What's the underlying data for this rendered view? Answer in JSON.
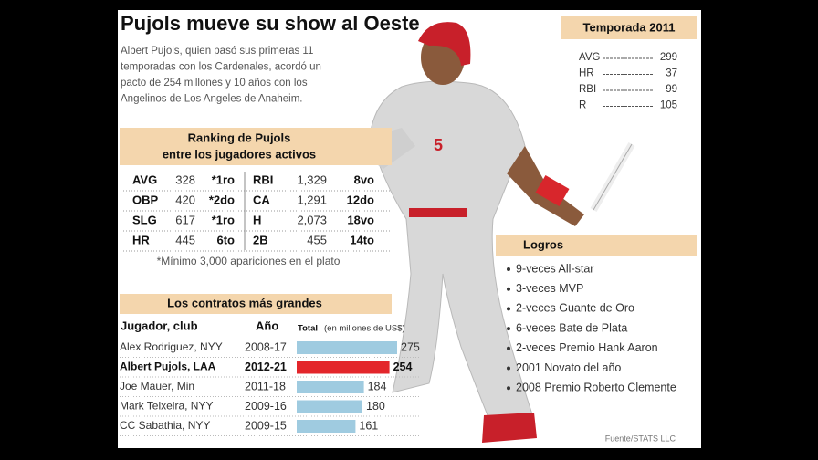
{
  "title": "Pujols mueve su show al Oeste",
  "intro": [
    "Albert Pujols, quien pasó sus primeras 11",
    "temporadas con los Cardenales, acordó un",
    "pacto de 254 millones y 10 años con los",
    "Angelinos de Los Angeles de Anaheim."
  ],
  "season": {
    "title": "Temporada 2011",
    "rows": [
      [
        "AVG",
        "299"
      ],
      [
        "HR",
        "37"
      ],
      [
        "RBI",
        "99"
      ],
      [
        "R",
        "105"
      ]
    ]
  },
  "ranking": {
    "title": [
      "Ranking de Pujols",
      "entre los jugadores activos"
    ],
    "rows": [
      [
        "AVG",
        "328",
        "*1ro",
        "RBI",
        "1,329",
        "8vo"
      ],
      [
        "OBP",
        "420",
        "*2do",
        "CA",
        "1,291",
        "12do"
      ],
      [
        "SLG",
        "617",
        "*1ro",
        "H",
        "2,073",
        "18vo"
      ],
      [
        "HR",
        "445",
        "6to",
        "2B",
        "455",
        "14to"
      ]
    ],
    "footnote": "*Mínimo 3,000 apariciones en el plato"
  },
  "contracts": {
    "title": "Los contratos más grandes",
    "headers": {
      "player": "Jugador, club",
      "years": "Año",
      "total": "Total",
      "units": "(en millones de US$)"
    },
    "rows": [
      {
        "player": "Alex Rodriguez, NYY",
        "years": "2008-17",
        "value": 275,
        "color": "#9fcbe0"
      },
      {
        "player": "Albert Pujols, LAA",
        "years": "2012-21",
        "value": 254,
        "color": "#e3262b"
      },
      {
        "player": "Joe Mauer, Min",
        "years": "2011-18",
        "value": 184,
        "color": "#9fcbe0"
      },
      {
        "player": "Mark Teixeira, NYY",
        "years": "2009-16",
        "value": 180,
        "color": "#9fcbe0"
      },
      {
        "player": "CC Sabathia, NYY",
        "years": "2009-15",
        "value": 161,
        "color": "#9fcbe0"
      }
    ]
  },
  "achievements": {
    "title": "Logros",
    "items": [
      "9-veces All-star",
      "3-veces MVP",
      "2-veces Guante de Oro",
      "6-veces Bate de Plata",
      "2-veces Premio Hank Aaron",
      "2001 Novato del año",
      "2008 Premio Roberto Clemente"
    ]
  },
  "source": "Fuente/STATS LLC"
}
